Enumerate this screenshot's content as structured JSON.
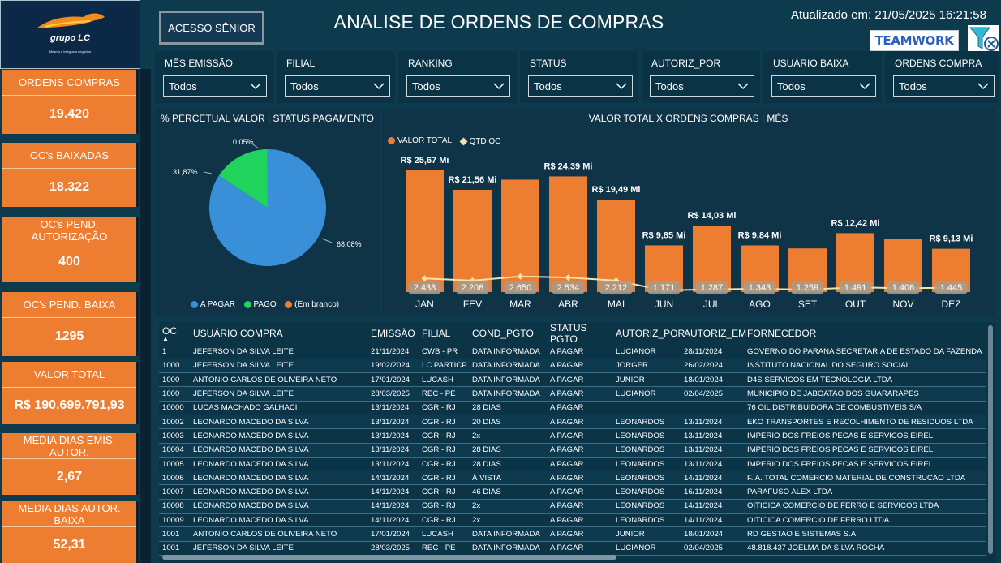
{
  "header": {
    "logo_brand": "grupo LC",
    "logo_tagline": "Mesmo e integrado negócios",
    "senior_button": "ACESSO SÊNIOR",
    "title": "ANALISE DE ORDENS DE COMPRAS",
    "updated": "Atualizado em: 21/05/2025 16:21:58",
    "teamwork_logo": "TEAMWORK",
    "clear_filters_icon": "filter-clear-icon"
  },
  "filters": [
    {
      "label": "MÊS EMISSÃO",
      "value": "Todos"
    },
    {
      "label": "FILIAL",
      "value": "Todos"
    },
    {
      "label": "RANKING",
      "value": "Todos"
    },
    {
      "label": "STATUS",
      "value": "Todos"
    },
    {
      "label": "AUTORIZ_POR",
      "value": "Todos"
    },
    {
      "label": "USUÁRIO BAIXA",
      "value": "Todos"
    },
    {
      "label": "ORDENS COMPRA",
      "value": "Todos"
    }
  ],
  "kpis": [
    {
      "label": "ORDENS COMPRAS",
      "value": "19.420"
    },
    {
      "label": "OC's BAIXADAS",
      "value": "18.322"
    },
    {
      "label": "OC's PEND. AUTORIZAÇÃO",
      "value": "400"
    },
    {
      "label": "OC's PEND. BAIXA",
      "value": "1295"
    },
    {
      "label": "VALOR TOTAL",
      "value": "R$ 190.699.791,93"
    },
    {
      "label": "MEDIA DIAS EMIS. AUTOR.",
      "value": "2,67"
    },
    {
      "label": "MEDIA DIAS AUTOR. BAIXA",
      "value": "52,31"
    }
  ],
  "pie": {
    "title": "% PERCETUAL VALOR |  STATUS PAGAMENTO",
    "labels": {
      "a_pagar": "68,08%",
      "pago": "31,87%",
      "em_branco": "0,05%"
    },
    "legend": [
      "A PAGAR",
      "PAGO",
      "(Em branco)"
    ],
    "colors": {
      "a_pagar": "#3a8fd9",
      "pago": "#1fd35c",
      "em_branco": "#ed7d31"
    }
  },
  "chart_data": {
    "type": "bar",
    "title": "VALOR TOTAL X ORDENS COMPRAS | MÊS",
    "categories": [
      "JAN",
      "FEV",
      "MAR",
      "ABR",
      "MAI",
      "JUN",
      "JUL",
      "AGO",
      "SET",
      "OUT",
      "NOV",
      "DEZ"
    ],
    "series": [
      {
        "name": "VALOR TOTAL",
        "type": "bar",
        "color": "#ed7d31",
        "values": [
          25.67,
          21.56,
          23.7,
          24.39,
          19.49,
          9.85,
          14.03,
          9.84,
          9.2,
          12.42,
          11.2,
          9.13
        ],
        "labels": [
          "R$ 25,67 Mi",
          "R$ 21,56 Mi",
          "",
          "R$ 24,39 Mi",
          "R$ 19,49 Mi",
          "R$ 9,85 Mi",
          "R$ 14,03 Mi",
          "R$ 9,84 Mi",
          "",
          "R$ 12,42 Mi",
          "",
          "R$ 9,13 Mi"
        ]
      },
      {
        "name": "QTD OC",
        "type": "line",
        "color": "#f2e2a6",
        "values": [
          2438,
          2208,
          2650,
          2534,
          2212,
          1171,
          1287,
          1343,
          1259,
          1491,
          1406,
          1445
        ],
        "labels": [
          "2.438",
          "2.208",
          "2.650",
          "2.534",
          "2.212",
          "1.171",
          "1.287",
          "1.343",
          "1.259",
          "1.491",
          "1.406",
          "1.445"
        ]
      }
    ]
  },
  "table": {
    "headers": [
      "OC",
      "USUÁRIO COMPRA",
      "EMISSÃO",
      "FILIAL",
      "COND_PGTO",
      "STATUS PGTO",
      "AUTORIZ_POR",
      "AUTORIZ_EM",
      "FORNECEDOR"
    ],
    "rows": [
      [
        "1",
        "JEFERSON DA SILVA LEITE",
        "21/11/2024",
        "CWB - PR",
        "DATA INFORMADA",
        "A PAGAR",
        "LUCIANOR",
        "28/11/2024",
        "GOVERNO DO PARANA SECRETARIA DE ESTADO DA FAZENDA"
      ],
      [
        "1000",
        "JEFERSON DA SILVA LEITE",
        "19/02/2024",
        "LC PARTICP",
        "DATA INFORMADA",
        "A PAGAR",
        "JORGER",
        "26/02/2024",
        "INSTITUTO NACIONAL DO SEGURO SOCIAL"
      ],
      [
        "1000",
        "ANTONIO CARLOS DE OLIVEIRA NETO",
        "17/01/2024",
        "LUCASH",
        "DATA INFORMADA",
        "A PAGAR",
        "JUNIOR",
        "18/01/2024",
        "D4S SERVICOS EM TECNOLOGIA LTDA"
      ],
      [
        "1000",
        "JEFERSON DA SILVA LEITE",
        "28/03/2025",
        "REC - PE",
        "DATA INFORMADA",
        "A PAGAR",
        "LUCIANOR",
        "02/04/2025",
        "MUNICIPIO DE JABOATAO DOS GUARARAPES"
      ],
      [
        "10000",
        "LUCAS MACHADO GALHACI",
        "13/11/2024",
        "CGR - RJ",
        "28 DIAS",
        "A PAGAR",
        "",
        "",
        "76 OIL DISTRIBUIDORA DE COMBUSTIVEIS S/A"
      ],
      [
        "10002",
        "LEONARDO MACEDO DA SILVA",
        "13/11/2024",
        "CGR - RJ",
        "20 DIAS",
        "A PAGAR",
        "LEONARDOS",
        "13/11/2024",
        "EKO TRANSPORTES E RECOLHIMENTO DE RESIDUOS LTDA"
      ],
      [
        "10003",
        "LEONARDO MACEDO DA SILVA",
        "13/11/2024",
        "CGR - RJ",
        "2x",
        "A PAGAR",
        "LEONARDOS",
        "13/11/2024",
        "IMPERIO DOS FREIOS PECAS E SERVICOS EIRELI"
      ],
      [
        "10004",
        "LEONARDO MACEDO DA SILVA",
        "13/11/2024",
        "CGR - RJ",
        "28 DIAS",
        "A PAGAR",
        "LEONARDOS",
        "13/11/2024",
        "IMPERIO DOS FREIOS PECAS E SERVICOS EIRELI"
      ],
      [
        "10005",
        "LEONARDO MACEDO DA SILVA",
        "13/11/2024",
        "CGR - RJ",
        "28 DIAS",
        "A PAGAR",
        "LEONARDOS",
        "13/11/2024",
        "IMPERIO DOS FREIOS PECAS E SERVICOS EIRELI"
      ],
      [
        "10006",
        "LEONARDO MACEDO DA SILVA",
        "14/11/2024",
        "CGR - RJ",
        "À VISTA",
        "A PAGAR",
        "LEONARDOS",
        "14/11/2024",
        "F. A. TOTAL COMERCIO MATERIAL DE CONSTRUCAO LTDA"
      ],
      [
        "10007",
        "LEONARDO MACEDO DA SILVA",
        "14/11/2024",
        "CGR - RJ",
        "46 DIAS",
        "A PAGAR",
        "LEONARDOS",
        "16/11/2024",
        "PARAFUSO ALEX LTDA"
      ],
      [
        "10008",
        "LEONARDO MACEDO DA SILVA",
        "14/11/2024",
        "CGR - RJ",
        "2x",
        "A PAGAR",
        "LEONARDOS",
        "14/11/2024",
        "OITICICA COMERCIO DE FERRO E SERVICOS LTDA"
      ],
      [
        "10009",
        "LEONARDO MACEDO DA SILVA",
        "14/11/2024",
        "CGR - RJ",
        "2x",
        "A PAGAR",
        "LEONARDOS",
        "14/11/2024",
        "OITICICA COMERCIO DE FERRO LTDA"
      ],
      [
        "1001",
        "ANTONIO CARLOS DE OLIVEIRA NETO",
        "17/01/2024",
        "LUCASH",
        "DATA INFORMADA",
        "A PAGAR",
        "JUNIOR",
        "18/01/2024",
        "RD GESTAO E SISTEMAS S.A."
      ],
      [
        "1001",
        "JEFERSON DA SILVA LEITE",
        "28/03/2025",
        "REC - PE",
        "DATA INFORMADA",
        "A PAGAR",
        "LUCIANOR",
        "02/04/2025",
        "48.818.437 JOELMA DA SILVA ROCHA"
      ]
    ]
  }
}
